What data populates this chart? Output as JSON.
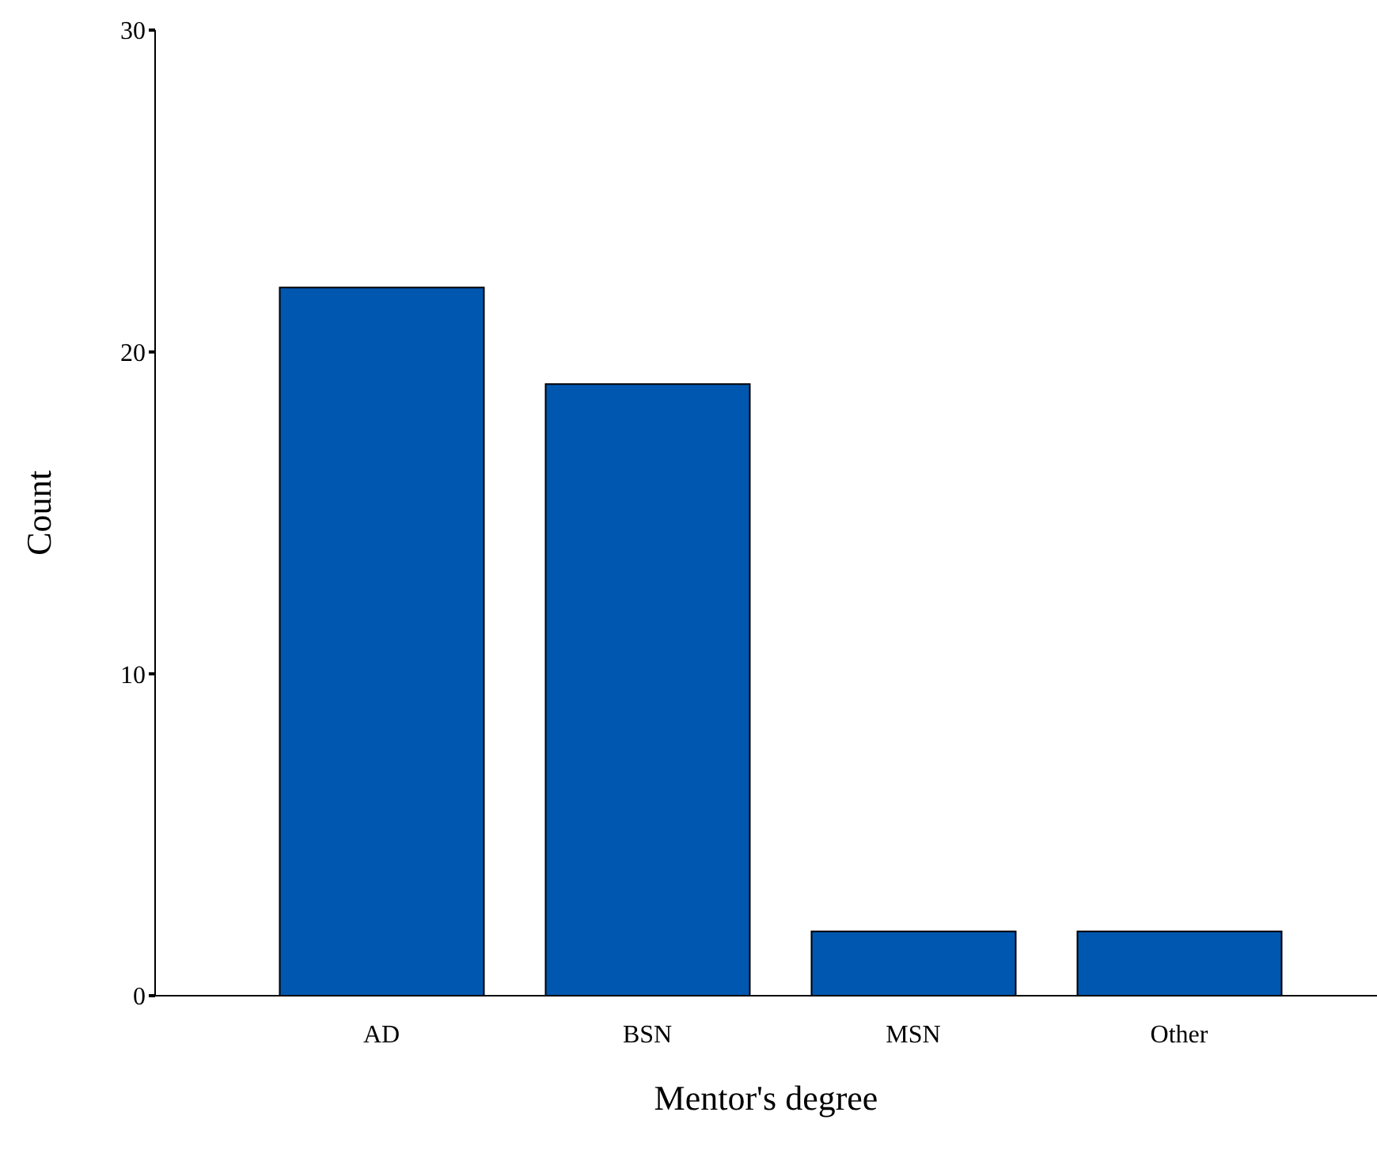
{
  "chart_data": {
    "type": "bar",
    "xlabel": "Mentor's degree",
    "ylabel": "Count",
    "categories": [
      "AD",
      "BSN",
      "MSN",
      "Other"
    ],
    "values": [
      22,
      19,
      2,
      2
    ],
    "color": "#0057b0",
    "ylim": [
      0,
      30
    ],
    "yticks": [
      0,
      10,
      20,
      30
    ],
    "grid": false,
    "legend": false
  }
}
